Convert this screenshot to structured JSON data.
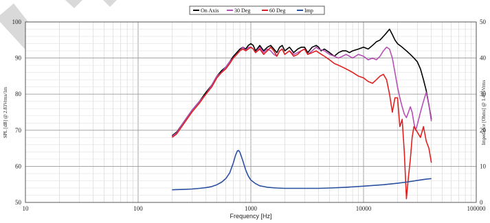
{
  "chart_data": {
    "type": "line",
    "title": "",
    "xlabel": "Frequency [Hz]",
    "ylabel": "SPL [dB] @ 2.83Vrms/1m",
    "y2label": "Impedance [Ohms] @ 1.415Vrms",
    "x_scale": "log",
    "xlim": [
      10,
      100000
    ],
    "ylim": [
      50,
      100
    ],
    "y2lim": [
      0,
      50
    ],
    "x_ticks": [
      "10",
      "100",
      "1000",
      "10000",
      "100000"
    ],
    "y_ticks": [
      "50",
      "60",
      "70",
      "80",
      "90",
      "100"
    ],
    "y2_ticks": [
      "0",
      "10",
      "20",
      "30",
      "40",
      "50"
    ],
    "grid": true,
    "legend_position": "top-center",
    "series": [
      {
        "name": "On Axis",
        "color": "#000000",
        "axis": "left",
        "points": [
          [
            200,
            68.5
          ],
          [
            220,
            69.5
          ],
          [
            250,
            72
          ],
          [
            300,
            75.5
          ],
          [
            350,
            78
          ],
          [
            400,
            80.5
          ],
          [
            450,
            82.5
          ],
          [
            500,
            85
          ],
          [
            550,
            86.5
          ],
          [
            600,
            87.5
          ],
          [
            650,
            89
          ],
          [
            700,
            90.5
          ],
          [
            750,
            91.5
          ],
          [
            800,
            92.5
          ],
          [
            850,
            93
          ],
          [
            900,
            92.5
          ],
          [
            950,
            93.5
          ],
          [
            1000,
            94
          ],
          [
            1050,
            93.5
          ],
          [
            1100,
            92
          ],
          [
            1200,
            93.5
          ],
          [
            1300,
            92
          ],
          [
            1400,
            93
          ],
          [
            1500,
            93.5
          ],
          [
            1600,
            92.5
          ],
          [
            1700,
            91.5
          ],
          [
            1800,
            93
          ],
          [
            1900,
            93.5
          ],
          [
            2000,
            92
          ],
          [
            2200,
            93
          ],
          [
            2400,
            91.5
          ],
          [
            2600,
            92.5
          ],
          [
            2800,
            93
          ],
          [
            3000,
            93
          ],
          [
            3200,
            91.5
          ],
          [
            3500,
            93
          ],
          [
            3800,
            93.5
          ],
          [
            4000,
            93
          ],
          [
            4200,
            92
          ],
          [
            4500,
            92.5
          ],
          [
            5000,
            91.5
          ],
          [
            5500,
            90.5
          ],
          [
            6000,
            91.5
          ],
          [
            6500,
            92
          ],
          [
            7000,
            92
          ],
          [
            7500,
            91.5
          ],
          [
            8000,
            92
          ],
          [
            9000,
            92.5
          ],
          [
            10000,
            93
          ],
          [
            11000,
            92.5
          ],
          [
            12000,
            93.5
          ],
          [
            13000,
            94.5
          ],
          [
            14000,
            95
          ],
          [
            15000,
            96
          ],
          [
            16000,
            97
          ],
          [
            17000,
            98
          ],
          [
            18000,
            96.5
          ],
          [
            19000,
            95
          ],
          [
            20000,
            94
          ],
          [
            22000,
            93
          ],
          [
            24000,
            92
          ],
          [
            26000,
            91
          ],
          [
            28000,
            90
          ],
          [
            30000,
            89
          ],
          [
            32000,
            87
          ],
          [
            34000,
            84
          ],
          [
            36000,
            81
          ],
          [
            38000,
            77
          ],
          [
            40000,
            73
          ]
        ]
      },
      {
        "name": "30 Deg",
        "color": "#b44fb4",
        "axis": "left",
        "points": [
          [
            200,
            68.3
          ],
          [
            220,
            69.3
          ],
          [
            250,
            72
          ],
          [
            300,
            75.5
          ],
          [
            350,
            78
          ],
          [
            400,
            80
          ],
          [
            450,
            82.5
          ],
          [
            500,
            85
          ],
          [
            550,
            86
          ],
          [
            600,
            87.5
          ],
          [
            650,
            89
          ],
          [
            700,
            90
          ],
          [
            750,
            91
          ],
          [
            800,
            92
          ],
          [
            850,
            93
          ],
          [
            900,
            92
          ],
          [
            950,
            93
          ],
          [
            1000,
            93
          ],
          [
            1050,
            92.5
          ],
          [
            1100,
            91.5
          ],
          [
            1200,
            93
          ],
          [
            1300,
            91.5
          ],
          [
            1400,
            92.5
          ],
          [
            1500,
            92
          ],
          [
            1600,
            91
          ],
          [
            1700,
            90.5
          ],
          [
            1800,
            92
          ],
          [
            1900,
            92.5
          ],
          [
            2000,
            91
          ],
          [
            2200,
            92
          ],
          [
            2400,
            91
          ],
          [
            2600,
            91.5
          ],
          [
            2800,
            92
          ],
          [
            3000,
            92.5
          ],
          [
            3200,
            91
          ],
          [
            3500,
            92
          ],
          [
            3800,
            93
          ],
          [
            4000,
            92.5
          ],
          [
            4500,
            92
          ],
          [
            5000,
            91
          ],
          [
            5500,
            90.5
          ],
          [
            6000,
            90
          ],
          [
            6500,
            90.5
          ],
          [
            7000,
            91
          ],
          [
            7500,
            90.5
          ],
          [
            8000,
            90
          ],
          [
            9000,
            91
          ],
          [
            10000,
            90.5
          ],
          [
            11000,
            89.5
          ],
          [
            12000,
            90
          ],
          [
            13000,
            89.5
          ],
          [
            14000,
            90.5
          ],
          [
            15000,
            92
          ],
          [
            16000,
            93
          ],
          [
            17000,
            92.5
          ],
          [
            18000,
            90
          ],
          [
            19000,
            86
          ],
          [
            20000,
            82
          ],
          [
            21000,
            79
          ],
          [
            22000,
            76.5
          ],
          [
            23000,
            74.5
          ],
          [
            24000,
            73.5
          ],
          [
            25000,
            75
          ],
          [
            26000,
            76.5
          ],
          [
            27000,
            75
          ],
          [
            28000,
            72
          ],
          [
            29000,
            70
          ],
          [
            30000,
            71.5
          ],
          [
            32000,
            75
          ],
          [
            34000,
            78
          ],
          [
            36000,
            80.5
          ],
          [
            38000,
            77
          ],
          [
            40000,
            72.5
          ]
        ]
      },
      {
        "name": "60 Deg",
        "color": "#e02020",
        "axis": "left",
        "points": [
          [
            200,
            68
          ],
          [
            220,
            69
          ],
          [
            250,
            71.5
          ],
          [
            300,
            75
          ],
          [
            350,
            77.5
          ],
          [
            400,
            80
          ],
          [
            450,
            82
          ],
          [
            500,
            84.5
          ],
          [
            550,
            86
          ],
          [
            600,
            87
          ],
          [
            650,
            88.5
          ],
          [
            700,
            90
          ],
          [
            750,
            91
          ],
          [
            800,
            92
          ],
          [
            850,
            92.5
          ],
          [
            900,
            92
          ],
          [
            950,
            92.5
          ],
          [
            1000,
            93
          ],
          [
            1050,
            92.5
          ],
          [
            1100,
            91.5
          ],
          [
            1200,
            92.5
          ],
          [
            1300,
            91
          ],
          [
            1400,
            92
          ],
          [
            1500,
            93
          ],
          [
            1600,
            92
          ],
          [
            1700,
            90.5
          ],
          [
            1800,
            92
          ],
          [
            1900,
            92.5
          ],
          [
            2000,
            91
          ],
          [
            2200,
            92
          ],
          [
            2400,
            90.5
          ],
          [
            2600,
            91
          ],
          [
            2800,
            92
          ],
          [
            3000,
            92.5
          ],
          [
            3200,
            91
          ],
          [
            3500,
            91.5
          ],
          [
            3800,
            92
          ],
          [
            4000,
            91.5
          ],
          [
            4500,
            90.5
          ],
          [
            5000,
            89.5
          ],
          [
            5500,
            88.5
          ],
          [
            6000,
            88
          ],
          [
            6500,
            87.5
          ],
          [
            7000,
            87
          ],
          [
            7500,
            86.5
          ],
          [
            8000,
            86
          ],
          [
            9000,
            85
          ],
          [
            10000,
            84.5
          ],
          [
            11000,
            83.5
          ],
          [
            12000,
            83
          ],
          [
            13000,
            84
          ],
          [
            14000,
            85
          ],
          [
            15000,
            85.5
          ],
          [
            16000,
            84
          ],
          [
            17000,
            80
          ],
          [
            18000,
            75
          ],
          [
            19000,
            79
          ],
          [
            20000,
            79
          ],
          [
            21000,
            71
          ],
          [
            22000,
            73
          ],
          [
            23000,
            64
          ],
          [
            24000,
            51
          ],
          [
            25000,
            57
          ],
          [
            26000,
            62
          ],
          [
            27000,
            68
          ],
          [
            28000,
            71
          ],
          [
            30000,
            69.5
          ],
          [
            32000,
            68
          ],
          [
            34000,
            71
          ],
          [
            36000,
            67
          ],
          [
            38000,
            65
          ],
          [
            40000,
            61
          ]
        ]
      },
      {
        "name": "Imp",
        "color": "#2a4fa0",
        "axis": "right",
        "points": [
          [
            200,
            3.5
          ],
          [
            250,
            3.6
          ],
          [
            300,
            3.7
          ],
          [
            350,
            3.9
          ],
          [
            400,
            4.1
          ],
          [
            450,
            4.4
          ],
          [
            500,
            4.9
          ],
          [
            550,
            5.6
          ],
          [
            600,
            6.6
          ],
          [
            650,
            8.2
          ],
          [
            700,
            11
          ],
          [
            730,
            13
          ],
          [
            760,
            14.3
          ],
          [
            780,
            14.4
          ],
          [
            800,
            13.9
          ],
          [
            850,
            11.5
          ],
          [
            900,
            9
          ],
          [
            950,
            7.3
          ],
          [
            1000,
            6.2
          ],
          [
            1100,
            5.2
          ],
          [
            1200,
            4.6
          ],
          [
            1400,
            4.2
          ],
          [
            1700,
            4
          ],
          [
            2000,
            3.9
          ],
          [
            2500,
            3.9
          ],
          [
            3000,
            3.9
          ],
          [
            4000,
            3.9
          ],
          [
            5000,
            4
          ],
          [
            7000,
            4.2
          ],
          [
            10000,
            4.5
          ],
          [
            15000,
            4.9
          ],
          [
            20000,
            5.3
          ],
          [
            25000,
            5.7
          ],
          [
            30000,
            6.1
          ],
          [
            35000,
            6.4
          ],
          [
            40000,
            6.6
          ]
        ]
      }
    ]
  }
}
